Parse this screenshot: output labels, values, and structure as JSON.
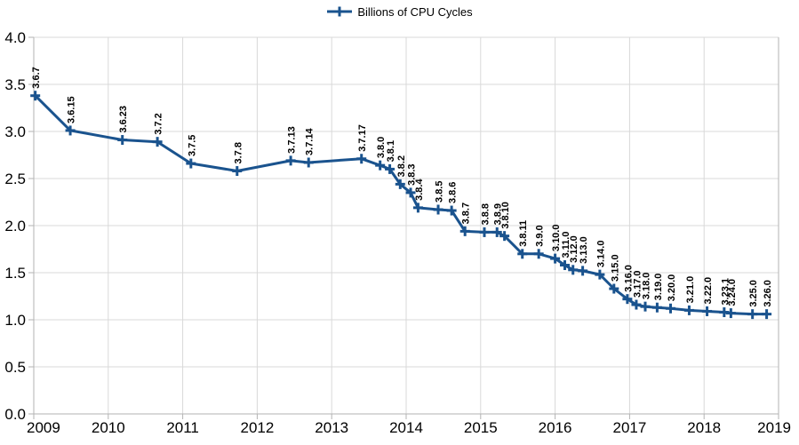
{
  "legend": {
    "label": "Billions of CPU Cycles"
  },
  "chart_data": {
    "type": "line",
    "title": "",
    "xlabel": "",
    "ylabel": "",
    "xlim": [
      2009,
      2019
    ],
    "ylim": [
      0,
      4
    ],
    "grid": true,
    "legend_position": "top-center",
    "x_ticks": [
      "2009",
      "2010",
      "2011",
      "2012",
      "2013",
      "2014",
      "2015",
      "2016",
      "2017",
      "2018",
      "2019"
    ],
    "y_ticks": [
      "0.0",
      "0.5",
      "1.0",
      "1.5",
      "2.0",
      "2.5",
      "3.0",
      "3.5",
      "4.0"
    ],
    "colors": {
      "series": "#1a538e",
      "grid": "#d9d9d9",
      "axis": "#b3b3b3",
      "text": "#000000",
      "label": "#000000"
    },
    "series": [
      {
        "name": "Billions of CPU Cycles",
        "marker": "plus",
        "points": [
          {
            "label": "3.6.7",
            "x": 2009.02,
            "y": 3.38
          },
          {
            "label": "3.6.15",
            "x": 2009.49,
            "y": 3.01
          },
          {
            "label": "3.6.23",
            "x": 2010.19,
            "y": 2.91
          },
          {
            "label": "3.7.2",
            "x": 2010.66,
            "y": 2.89
          },
          {
            "label": "3.7.5",
            "x": 2011.11,
            "y": 2.66
          },
          {
            "label": "3.7.8",
            "x": 2011.73,
            "y": 2.58
          },
          {
            "label": "3.7.13",
            "x": 2012.45,
            "y": 2.69
          },
          {
            "label": "3.7.14",
            "x": 2012.69,
            "y": 2.67
          },
          {
            "label": "3.7.17",
            "x": 2013.4,
            "y": 2.71
          },
          {
            "label": "3.8.0",
            "x": 2013.65,
            "y": 2.64
          },
          {
            "label": "3.8.1",
            "x": 2013.78,
            "y": 2.6
          },
          {
            "label": "3.8.2",
            "x": 2013.92,
            "y": 2.44
          },
          {
            "label": "3.8.3",
            "x": 2014.06,
            "y": 2.35
          },
          {
            "label": "3.8.4",
            "x": 2014.16,
            "y": 2.19
          },
          {
            "label": "3.8.5",
            "x": 2014.43,
            "y": 2.17
          },
          {
            "label": "3.8.6",
            "x": 2014.61,
            "y": 2.16
          },
          {
            "label": "3.8.7",
            "x": 2014.79,
            "y": 1.94
          },
          {
            "label": "3.8.8",
            "x": 2015.05,
            "y": 1.93
          },
          {
            "label": "3.8.9",
            "x": 2015.22,
            "y": 1.93
          },
          {
            "label": "3.8.10",
            "x": 2015.32,
            "y": 1.89
          },
          {
            "label": "3.8.11",
            "x": 2015.56,
            "y": 1.7
          },
          {
            "label": "3.9.0",
            "x": 2015.78,
            "y": 1.7
          },
          {
            "label": "3.10.0",
            "x": 2016.0,
            "y": 1.65
          },
          {
            "label": "3.11.0",
            "x": 2016.13,
            "y": 1.58
          },
          {
            "label": "3.12.0",
            "x": 2016.24,
            "y": 1.53
          },
          {
            "label": "3.13.0",
            "x": 2016.37,
            "y": 1.52
          },
          {
            "label": "3.14.0",
            "x": 2016.6,
            "y": 1.48
          },
          {
            "label": "3.15.0",
            "x": 2016.79,
            "y": 1.33
          },
          {
            "label": "3.16.0",
            "x": 2016.97,
            "y": 1.22
          },
          {
            "label": "3.17.0",
            "x": 2017.09,
            "y": 1.16
          },
          {
            "label": "3.18.0",
            "x": 2017.21,
            "y": 1.14
          },
          {
            "label": "3.19.0",
            "x": 2017.37,
            "y": 1.13
          },
          {
            "label": "3.20.0",
            "x": 2017.55,
            "y": 1.12
          },
          {
            "label": "3.21.0",
            "x": 2017.8,
            "y": 1.1
          },
          {
            "label": "3.22.0",
            "x": 2018.04,
            "y": 1.09
          },
          {
            "label": "3.23.1",
            "x": 2018.27,
            "y": 1.08
          },
          {
            "label": "3.24.0",
            "x": 2018.36,
            "y": 1.07
          },
          {
            "label": "3.25.0",
            "x": 2018.65,
            "y": 1.06
          },
          {
            "label": "3.26.0",
            "x": 2018.84,
            "y": 1.06
          }
        ]
      }
    ]
  }
}
